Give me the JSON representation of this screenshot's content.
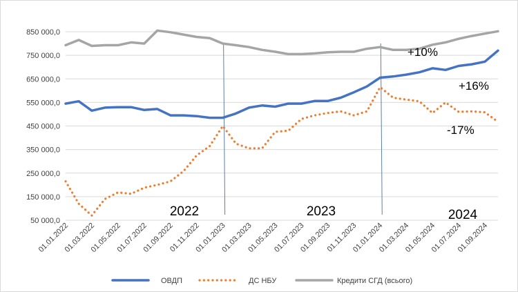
{
  "chart_data": {
    "type": "line",
    "title": "",
    "xlabel": "",
    "ylabel": "",
    "ylim": [
      50000,
      850000
    ],
    "y_ticks": [
      50000,
      150000,
      250000,
      350000,
      450000,
      550000,
      650000,
      750000,
      850000
    ],
    "y_tick_labels": [
      "50 000,0",
      "150 000,0",
      "250 000,0",
      "350 000,0",
      "450 000,0",
      "550 000,0",
      "650 000,0",
      "750 000,0",
      "850 000,0"
    ],
    "grid": true,
    "legend_position": "bottom",
    "categories": [
      "01.01.2022",
      "01.02.2022",
      "01.03.2022",
      "01.04.2022",
      "01.05.2022",
      "01.06.2022",
      "01.07.2022",
      "01.08.2022",
      "01.09.2022",
      "01.10.2022",
      "01.11.2022",
      "01.12.2022",
      "01.01.2023",
      "01.02.2023",
      "01.03.2023",
      "01.04.2023",
      "01.05.2023",
      "01.06.2023",
      "01.07.2023",
      "01.08.2023",
      "01.09.2023",
      "01.10.2023",
      "01.11.2023",
      "01.12.2023",
      "01.01.2024",
      "01.02.2024",
      "01.03.2024",
      "01.04.2024",
      "01.05.2024",
      "01.06.2024",
      "01.07.2024",
      "01.08.2024",
      "01.09.2024",
      "01.10.2024"
    ],
    "x_tick_labels": [
      "01.01.2022",
      "01.03.2022",
      "01.05.2022",
      "01.07.2022",
      "01.09.2022",
      "01.11.2022",
      "01.01.2023",
      "01.03.2023",
      "01.05.2023",
      "01.07.2023",
      "01.09.2023",
      "01.11.2023",
      "01.01.2024",
      "01.03.2024",
      "01.05.2024",
      "01.07.2024",
      "01.09.2024"
    ],
    "series": [
      {
        "name": "ОВДП",
        "style": "solid",
        "color": "#4472c4",
        "values": [
          545000,
          555000,
          515000,
          528000,
          530000,
          530000,
          518000,
          522000,
          495000,
          495000,
          492000,
          485000,
          485000,
          503000,
          528000,
          537000,
          532000,
          545000,
          545000,
          556000,
          556000,
          570000,
          593000,
          618000,
          655000,
          660000,
          668000,
          678000,
          695000,
          688000,
          705000,
          712000,
          723000,
          770000
        ]
      },
      {
        "name": "ДС НБУ",
        "style": "dotted",
        "color": "#ed7d31",
        "values": [
          215000,
          120000,
          70000,
          140000,
          168000,
          162000,
          188000,
          200000,
          215000,
          258000,
          325000,
          365000,
          450000,
          375000,
          355000,
          355000,
          425000,
          430000,
          480000,
          495000,
          505000,
          512000,
          495000,
          512000,
          615000,
          570000,
          562000,
          555000,
          505000,
          550000,
          510000,
          512000,
          508000,
          468000
        ]
      },
      {
        "name": "Кредити СГД (всього)",
        "style": "solid",
        "color": "#a5a5a5",
        "values": [
          793000,
          815000,
          790000,
          793000,
          793000,
          805000,
          800000,
          855000,
          848000,
          838000,
          828000,
          823000,
          800000,
          793000,
          785000,
          773000,
          765000,
          755000,
          755000,
          758000,
          763000,
          765000,
          765000,
          778000,
          785000,
          773000,
          773000,
          778000,
          795000,
          805000,
          820000,
          832000,
          842000,
          852000
        ]
      }
    ],
    "year_markers": [
      {
        "label": "2022",
        "at_index": null
      },
      {
        "label": "2023",
        "at_index": 12
      },
      {
        "label": "2024",
        "at_index": 24
      }
    ],
    "annotations": [
      {
        "text": "+10%",
        "series": "Кредити СГД (всього)"
      },
      {
        "text": "+16%",
        "series": "ОВДП"
      },
      {
        "text": "-17%",
        "series": "ДС НБУ"
      }
    ],
    "colors": {
      "grid": "#d9d9d9",
      "divider": "#5b7fa6",
      "text": "#404040"
    }
  }
}
